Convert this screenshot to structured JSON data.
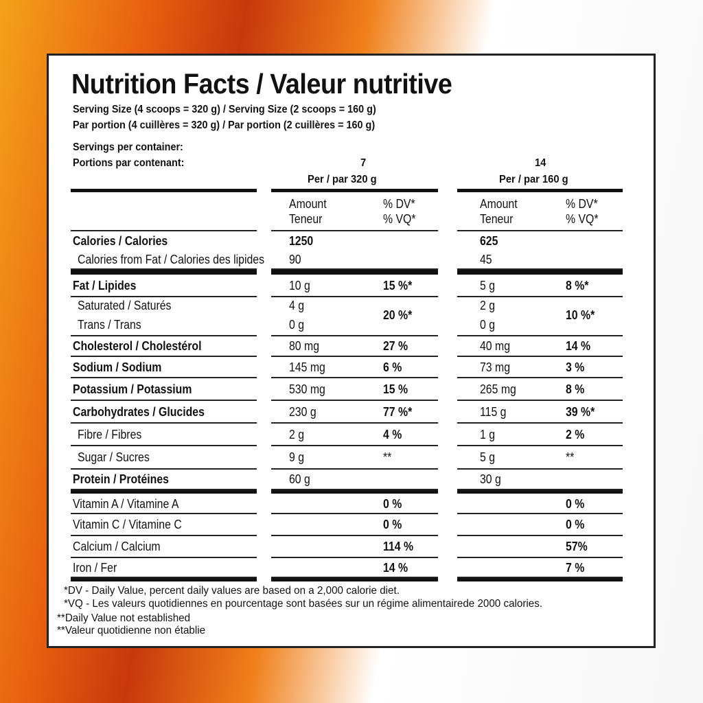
{
  "title": "Nutrition Facts / Valeur nutritive",
  "serving_en": "Serving Size (4 scoops = 320 g) / Serving Size (2 scoops = 160 g)",
  "serving_fr": "Par portion (4 cuillères = 320 g) / Par portion (2 cuillères = 160 g)",
  "servings_en": "Servings per container:",
  "servings_fr": "Portions par contenant:",
  "columns": [
    {
      "servings": "7",
      "per": "Per / par  320 g",
      "amount": "Amount",
      "teneur": "Teneur",
      "dv": "% DV*",
      "vq": "% VQ*"
    },
    {
      "servings": "14",
      "per": "Per / par  160 g",
      "amount": "Amount",
      "teneur": "Teneur",
      "dv": "% DV*",
      "vq": "% VQ*"
    }
  ],
  "rows": [
    {
      "label": "Calories / Calories",
      "bold": true,
      "a1": "1250",
      "d1": "",
      "a2": "625",
      "d2": "",
      "amtBold": true
    },
    {
      "label": "Calories from Fat / Calories des lipides",
      "indent": true,
      "a1": "90",
      "d1": "",
      "a2": "45",
      "d2": ""
    },
    {
      "label": "Fat / Lipides",
      "bold": true,
      "a1": "10 g",
      "d1": "15 %*",
      "a2": "5 g",
      "d2": "8 %*"
    },
    {
      "label": "Saturated / Saturés",
      "label2": "Trans / Trans",
      "indent": true,
      "a1": "4 g",
      "a1b": "0 g",
      "d1": "20 %*",
      "a2": "2 g",
      "a2b": "0 g",
      "d2": "10 %*"
    },
    {
      "label": "Cholesterol / Cholestérol",
      "bold": true,
      "a1": "80 mg",
      "d1": "27 %",
      "a2": "40 mg",
      "d2": "14 %"
    },
    {
      "label": "Sodium / Sodium",
      "bold": true,
      "a1": "145 mg",
      "d1": "6 %",
      "a2": "73 mg",
      "d2": "3 %"
    },
    {
      "label": "Potassium / Potassium",
      "bold": true,
      "a1": "530 mg",
      "d1": "15 %",
      "a2": "265 mg",
      "d2": "8 %"
    },
    {
      "label": "Carbohydrates / Glucides",
      "bold": true,
      "a1": "230 g",
      "d1": "77 %*",
      "a2": "115 g",
      "d2": "39 %*"
    },
    {
      "label": "Fibre / Fibres",
      "indent": true,
      "a1": "2 g",
      "d1": "4 %",
      "a2": "1 g",
      "d2": "2 %"
    },
    {
      "label": "Sugar / Sucres",
      "indent": true,
      "a1": "9 g",
      "d1": "**",
      "a2": "5 g",
      "d2": "**",
      "dvPlain": true
    },
    {
      "label": "Protein / Protéines",
      "bold": true,
      "a1": "60 g",
      "d1": "",
      "a2": "30 g",
      "d2": ""
    },
    {
      "label": "Vitamin A / Vitamine A",
      "a1": "",
      "d1": "0 %",
      "a2": "",
      "d2": "0 %"
    },
    {
      "label": "Vitamin C / Vitamine C",
      "a1": "",
      "d1": "0 %",
      "a2": "",
      "d2": "0 %"
    },
    {
      "label": "Calcium / Calcium",
      "a1": "",
      "d1": "114 %",
      "a2": "",
      "d2": "57%"
    },
    {
      "label": "Iron / Fer",
      "a1": "",
      "d1": "14 %",
      "a2": "",
      "d2": "7 %"
    }
  ],
  "footnotes": [
    "*DV - Daily Value, percent daily values are based on a 2,000 calorie diet.",
    "*VQ - Les valeurs quotidiennes en pourcentage sont basées sur un régime alimentairede 2000 calories.",
    "**Daily Value not established",
    "**Valeur quotidienne non établie"
  ]
}
